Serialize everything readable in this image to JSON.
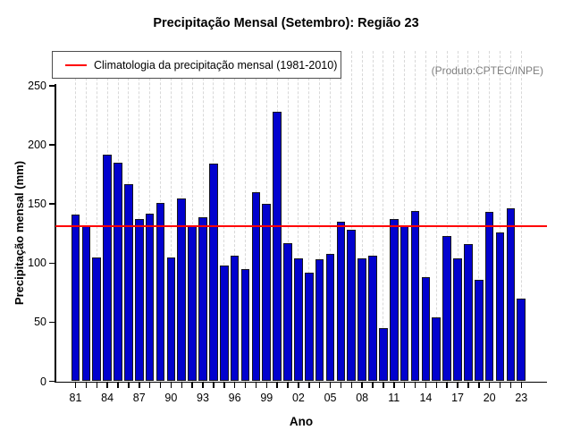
{
  "title": "Precipitação Mensal (Setembro): Região 23",
  "legend": {
    "label": "Climatologia da precipitação mensal (1981-2010)"
  },
  "produto_label": "(Produto:CPTEC/INPE)",
  "colors": {
    "bar": "#0202ce",
    "climatology_line": "#ff0000",
    "gridline": "#d8d8d8",
    "produto_text": "#7f7f7f"
  },
  "chart_data": {
    "type": "bar",
    "title": "Precipitação Mensal (Setembro): Região 23",
    "xlabel": "Ano",
    "ylabel": "Precipitação mensal (mm)",
    "ylim": [
      0,
      250
    ],
    "y_ticks": [
      0,
      50,
      100,
      150,
      200,
      250
    ],
    "x_tick_labels": [
      "81",
      "84",
      "87",
      "90",
      "93",
      "96",
      "99",
      "02",
      "05",
      "08",
      "11",
      "14",
      "17",
      "20",
      "23"
    ],
    "x_tick_label_interval": 3,
    "grid": "vertical-dashed",
    "legend_position": "top-left",
    "climatology_value": 131.5,
    "categories": [
      1981,
      1982,
      1983,
      1984,
      1985,
      1986,
      1987,
      1988,
      1989,
      1990,
      1991,
      1992,
      1993,
      1994,
      1995,
      1996,
      1997,
      1998,
      1999,
      2000,
      2001,
      2002,
      2003,
      2004,
      2005,
      2006,
      2007,
      2008,
      2009,
      2010,
      2011,
      2012,
      2013,
      2014,
      2015,
      2016,
      2017,
      2018,
      2019,
      2020,
      2021,
      2022,
      2023
    ],
    "values": [
      141,
      132,
      105,
      192,
      185,
      167,
      137,
      142,
      151,
      105,
      155,
      132,
      139,
      184,
      98,
      106,
      95,
      160,
      150,
      228,
      117,
      104,
      92,
      103,
      108,
      135,
      128,
      104,
      106,
      45,
      137,
      132,
      144,
      88,
      54,
      123,
      104,
      116,
      86,
      143,
      126,
      146,
      70
    ]
  }
}
